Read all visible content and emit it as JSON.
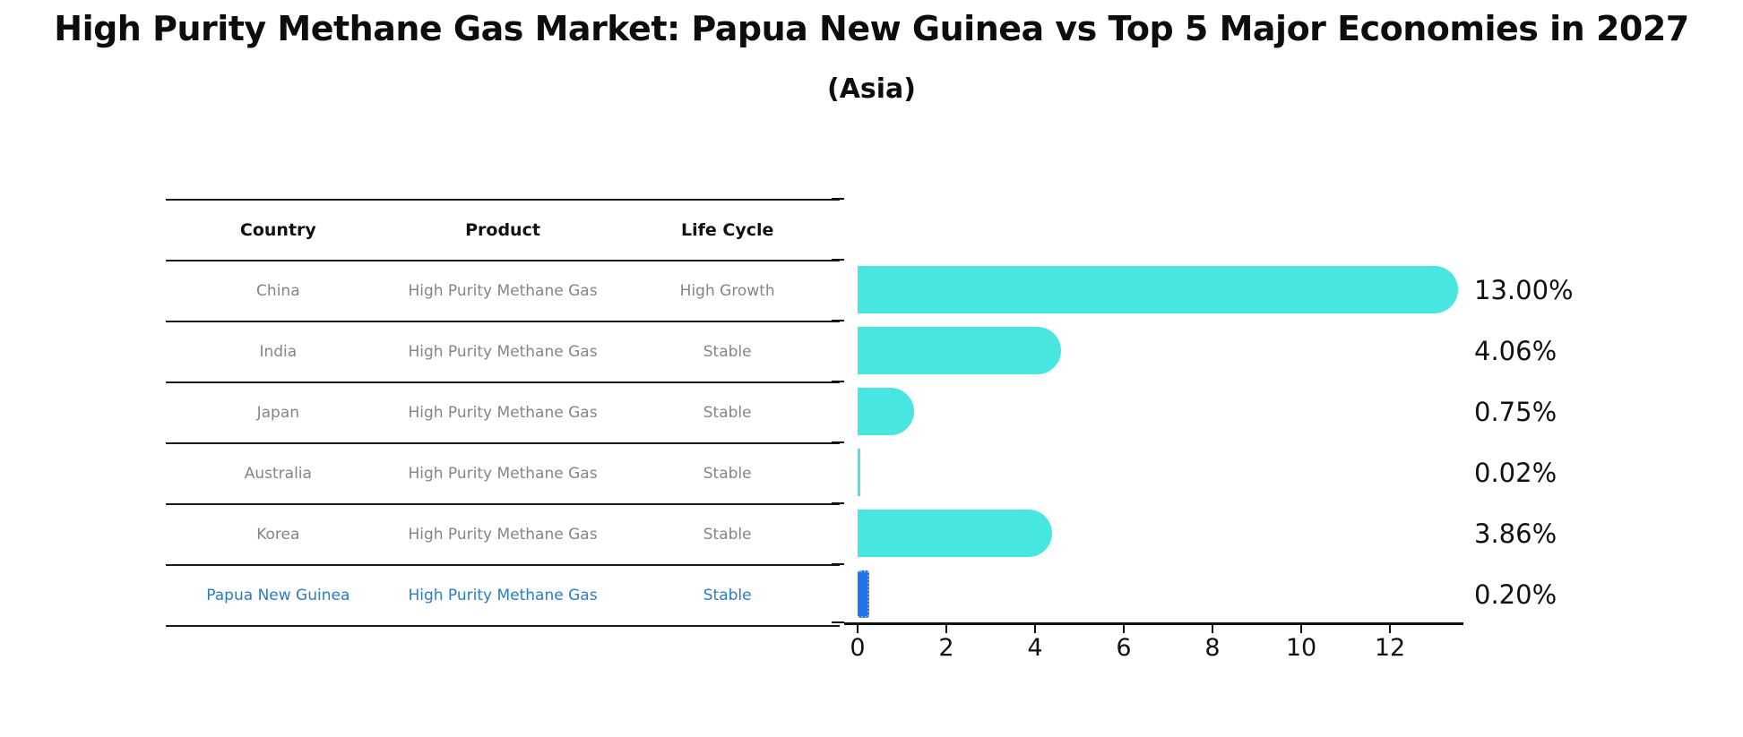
{
  "title": "High Purity Methane Gas Market: Papua New Guinea vs Top 5 Major Economies in 2027",
  "subtitle": "(Asia)",
  "table": {
    "headers": [
      "Country",
      "Product",
      "Life Cycle"
    ],
    "rows": [
      {
        "country": "China",
        "product": "High Purity Methane Gas",
        "life_cycle": "High Growth",
        "highlight": false
      },
      {
        "country": "India",
        "product": "High Purity Methane Gas",
        "life_cycle": "Stable",
        "highlight": false
      },
      {
        "country": "Japan",
        "product": "High Purity Methane Gas",
        "life_cycle": "Stable",
        "highlight": false
      },
      {
        "country": "Australia",
        "product": "High Purity Methane Gas",
        "life_cycle": "Stable",
        "highlight": false
      },
      {
        "country": "Korea",
        "product": "High Purity Methane Gas",
        "life_cycle": "Stable",
        "highlight": false
      },
      {
        "country": "Papua New Guinea",
        "product": "High Purity Methane Gas",
        "life_cycle": "Stable",
        "highlight": true
      }
    ]
  },
  "chart_data": {
    "type": "bar",
    "orientation": "horizontal",
    "categories": [
      "China",
      "India",
      "Japan",
      "Australia",
      "Korea",
      "Papua New Guinea"
    ],
    "values": [
      13.0,
      4.06,
      0.75,
      0.02,
      3.86,
      0.2
    ],
    "value_labels": [
      "13.00%",
      "4.06%",
      "0.75%",
      "0.02%",
      "3.86%",
      "0.20%"
    ],
    "x_ticks": [
      "0",
      "2",
      "4",
      "6",
      "8",
      "10",
      "12"
    ],
    "xlim": [
      0,
      13.65
    ],
    "grid": false,
    "legend_position": "none",
    "bar_color": "#47E6E0",
    "highlight_bar_color": "#2174E8",
    "highlight_bar_edge_color": "#77ACF2",
    "highlight_index": 5,
    "highlight_text_color": "#2A7CC7"
  }
}
